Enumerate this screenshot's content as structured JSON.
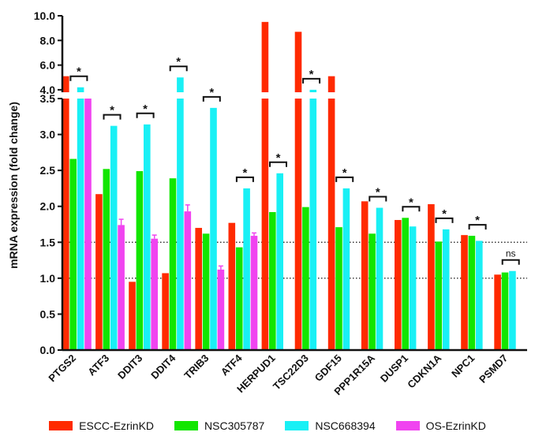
{
  "chart_data": {
    "type": "bar",
    "ylabel": "mRNA expression (fold change)",
    "categories": [
      "PTGS2",
      "ATF3",
      "DDIT3",
      "DDIT4",
      "TRIB3",
      "ATF4",
      "HERPUD1",
      "TSC22D3",
      "GDF15",
      "PPP1R15A",
      "DUSP1",
      "CDKN1A",
      "NPC1",
      "PSMD7"
    ],
    "y_axis_lower": {
      "ylim": [
        0,
        3.5
      ],
      "ticks": [
        "0.0",
        "0.5",
        "1.0",
        "1.5",
        "2.0",
        "2.5",
        "3.0",
        "3.5"
      ]
    },
    "y_axis_upper": {
      "ylim": [
        3.8,
        10
      ],
      "ticks": [
        "4.0",
        "6.0",
        "8.0",
        "10.0"
      ]
    },
    "reference_lines": [
      1.0,
      1.5
    ],
    "series": [
      {
        "name": "ESCC-EzrinKD",
        "color": "#ff2a00",
        "values": [
          5.1,
          2.17,
          0.95,
          1.07,
          1.7,
          1.77,
          9.5,
          8.7,
          5.1,
          2.07,
          1.81,
          2.03,
          1.6,
          1.05
        ]
      },
      {
        "name": "NSC305787",
        "color": "#12e600",
        "values": [
          2.66,
          2.52,
          2.49,
          2.39,
          1.62,
          1.43,
          1.92,
          1.99,
          1.71,
          1.62,
          1.84,
          1.51,
          1.59,
          1.08
        ]
      },
      {
        "name": "NSC668394",
        "color": "#19f0f5",
        "values": [
          4.2,
          3.12,
          3.14,
          5.0,
          3.37,
          2.25,
          2.46,
          4.0,
          2.25,
          1.98,
          1.72,
          1.68,
          1.52,
          1.1
        ]
      },
      {
        "name": "OS-EzrinKD",
        "color": "#f044f0",
        "values": [
          3.8,
          1.74,
          1.55,
          1.93,
          1.12,
          1.59,
          null,
          null,
          null,
          null,
          null,
          null,
          null,
          null
        ],
        "errors": [
          0,
          0.08,
          0.05,
          0.09,
          0.05,
          0.04,
          null,
          null,
          null,
          null,
          null,
          null,
          null,
          null
        ]
      }
    ],
    "significance": [
      "*",
      "*",
      "*",
      "*",
      "*",
      "*",
      "*",
      "*",
      "*",
      "*",
      "*",
      "*",
      "*",
      "ns"
    ]
  }
}
